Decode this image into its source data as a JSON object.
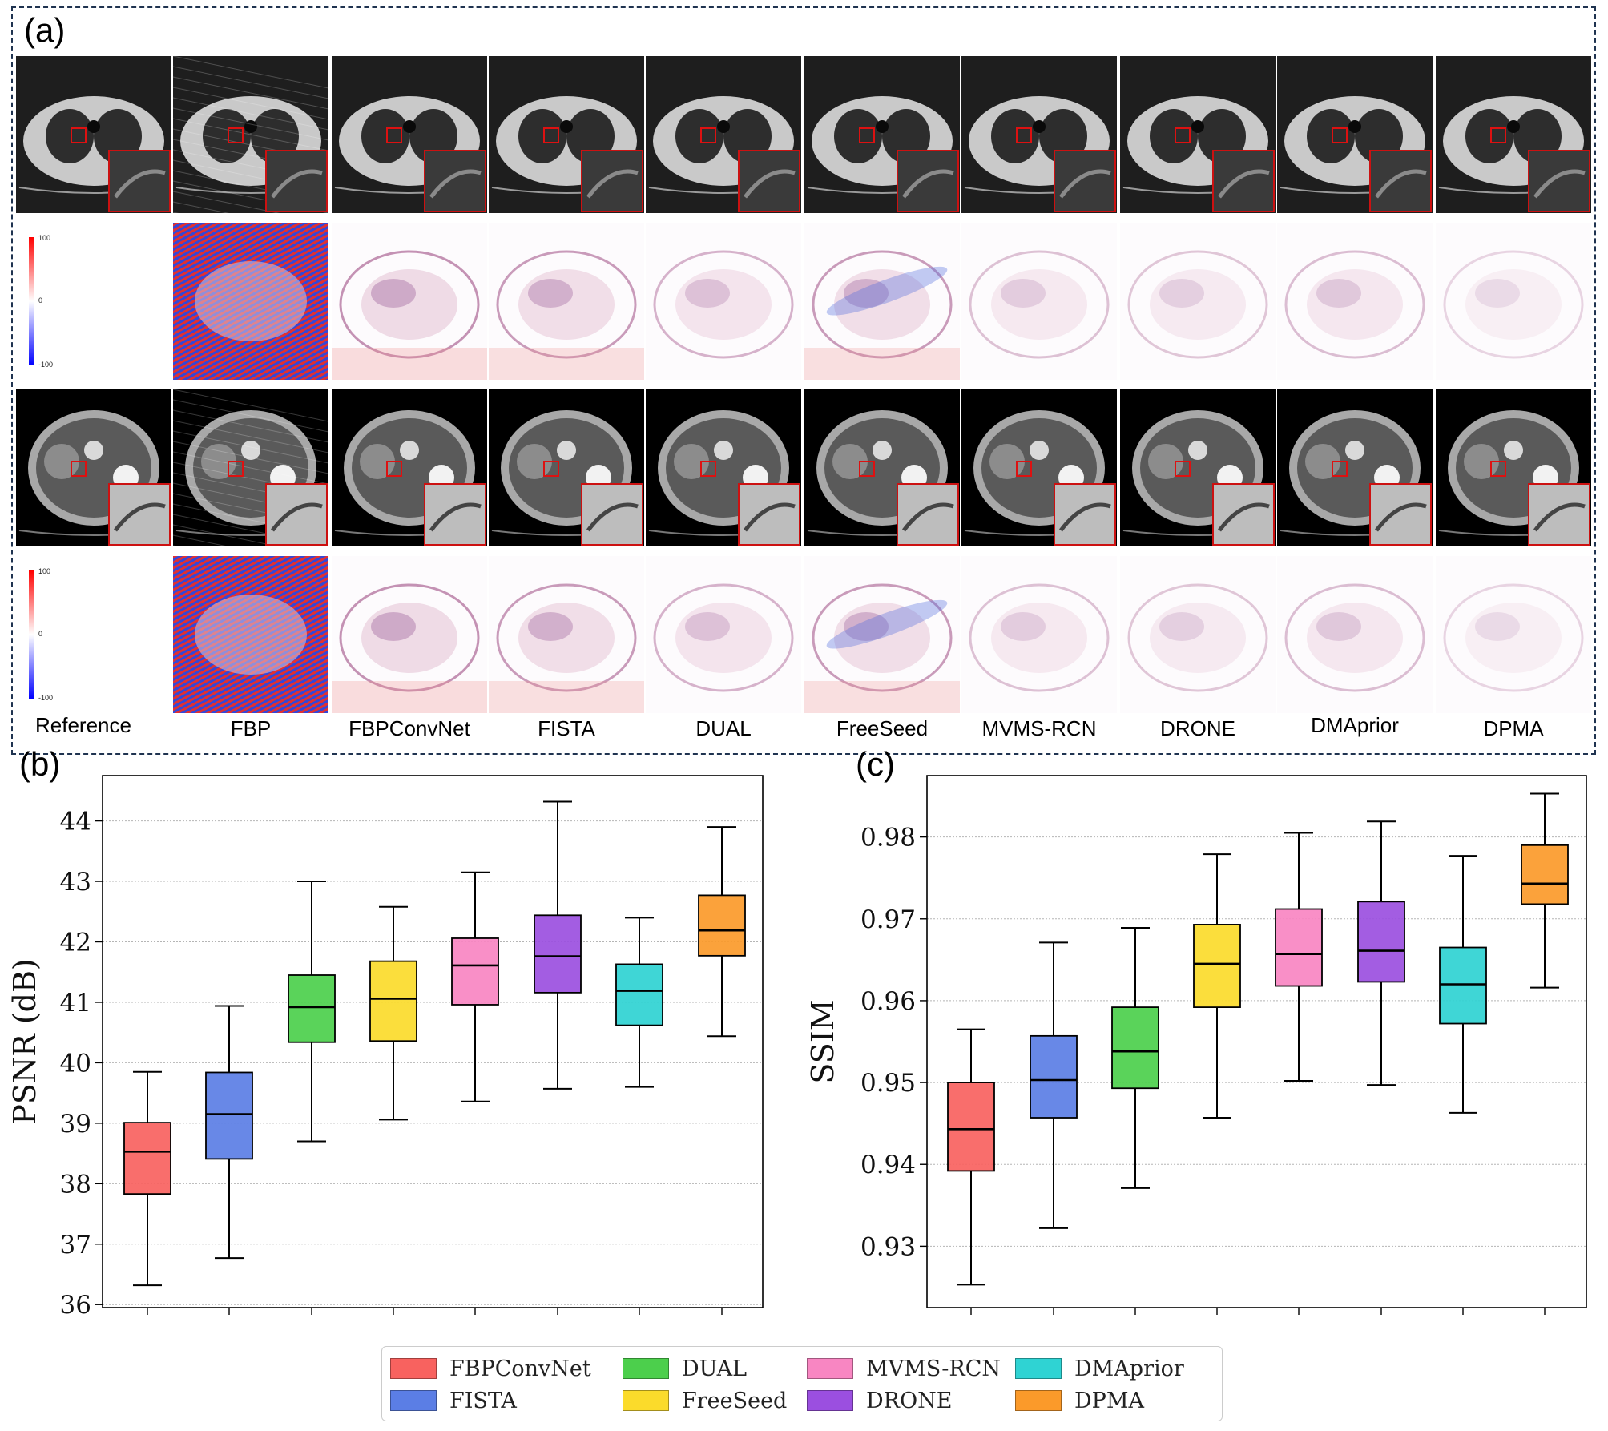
{
  "panels": {
    "a": "(a)",
    "b": "(b)",
    "c": "(c)"
  },
  "methods": [
    "Reference",
    "FBP",
    "FBPConvNet",
    "FISTA",
    "DUAL",
    "FreeSeed",
    "MVMS-RCN",
    "DRONE",
    "DMAprior",
    "DPMA"
  ],
  "colorbar": {
    "max": "100",
    "mid": "0",
    "min": "-100"
  },
  "colors": {
    "FBPConvNet": "#f8625f",
    "FISTA": "#5b7ee5",
    "DUAL": "#4ccf4c",
    "FreeSeed": "#fbdb2b",
    "MVMS-RCN": "#f886c2",
    "DRONE": "#9b4fe0",
    "DMAprior": "#2fd3d3",
    "DPMA": "#fb9a2a"
  },
  "legend": [
    "FBPConvNet",
    "DUAL",
    "MVMS-RCN",
    "DMAprior",
    "FISTA",
    "FreeSeed",
    "DRONE",
    "DPMA"
  ],
  "chart_data": [
    {
      "type": "box",
      "ylabel": "PSNR (dB)",
      "ylim": [
        35.95,
        44.75
      ],
      "yticks": [
        36,
        37,
        38,
        39,
        40,
        41,
        42,
        43,
        44
      ],
      "grid": true,
      "series": [
        {
          "name": "FBPConvNet",
          "whisker_low": 36.32,
          "q1": 37.83,
          "median": 38.53,
          "q3": 39.01,
          "whisker_high": 39.85
        },
        {
          "name": "FISTA",
          "whisker_low": 36.77,
          "q1": 38.41,
          "median": 39.15,
          "q3": 39.84,
          "whisker_high": 40.94
        },
        {
          "name": "DUAL",
          "whisker_low": 38.7,
          "q1": 40.34,
          "median": 40.92,
          "q3": 41.45,
          "whisker_high": 43.0
        },
        {
          "name": "FreeSeed",
          "whisker_low": 39.06,
          "q1": 40.36,
          "median": 41.06,
          "q3": 41.68,
          "whisker_high": 42.58
        },
        {
          "name": "MVMS-RCN",
          "whisker_low": 39.36,
          "q1": 40.96,
          "median": 41.61,
          "q3": 42.06,
          "whisker_high": 43.15
        },
        {
          "name": "DRONE",
          "whisker_low": 39.57,
          "q1": 41.16,
          "median": 41.76,
          "q3": 42.44,
          "whisker_high": 44.32
        },
        {
          "name": "DMAprior",
          "whisker_low": 39.6,
          "q1": 40.62,
          "median": 41.19,
          "q3": 41.63,
          "whisker_high": 42.4
        },
        {
          "name": "DPMA",
          "whisker_low": 40.44,
          "q1": 41.77,
          "median": 42.19,
          "q3": 42.77,
          "whisker_high": 43.9
        }
      ]
    },
    {
      "type": "box",
      "ylabel": "SSIM",
      "ylim": [
        0.9225,
        0.9875
      ],
      "yticks": [
        0.93,
        0.94,
        0.95,
        0.96,
        0.97,
        0.98
      ],
      "grid": true,
      "series": [
        {
          "name": "FBPConvNet",
          "whisker_low": 0.9253,
          "q1": 0.9392,
          "median": 0.9443,
          "q3": 0.95,
          "whisker_high": 0.9565
        },
        {
          "name": "FISTA",
          "whisker_low": 0.9322,
          "q1": 0.9457,
          "median": 0.9503,
          "q3": 0.9557,
          "whisker_high": 0.9671
        },
        {
          "name": "DUAL",
          "whisker_low": 0.9371,
          "q1": 0.9493,
          "median": 0.9538,
          "q3": 0.9592,
          "whisker_high": 0.9689
        },
        {
          "name": "FreeSeed",
          "whisker_low": 0.9457,
          "q1": 0.9592,
          "median": 0.9645,
          "q3": 0.9693,
          "whisker_high": 0.9779
        },
        {
          "name": "MVMS-RCN",
          "whisker_low": 0.9502,
          "q1": 0.9618,
          "median": 0.9657,
          "q3": 0.9712,
          "whisker_high": 0.9805
        },
        {
          "name": "DRONE",
          "whisker_low": 0.9497,
          "q1": 0.9623,
          "median": 0.9661,
          "q3": 0.9721,
          "whisker_high": 0.9819
        },
        {
          "name": "DMAprior",
          "whisker_low": 0.9463,
          "q1": 0.9572,
          "median": 0.962,
          "q3": 0.9665,
          "whisker_high": 0.9777
        },
        {
          "name": "DPMA",
          "whisker_low": 0.9616,
          "q1": 0.9718,
          "median": 0.9743,
          "q3": 0.979,
          "whisker_high": 0.9853
        }
      ]
    }
  ]
}
